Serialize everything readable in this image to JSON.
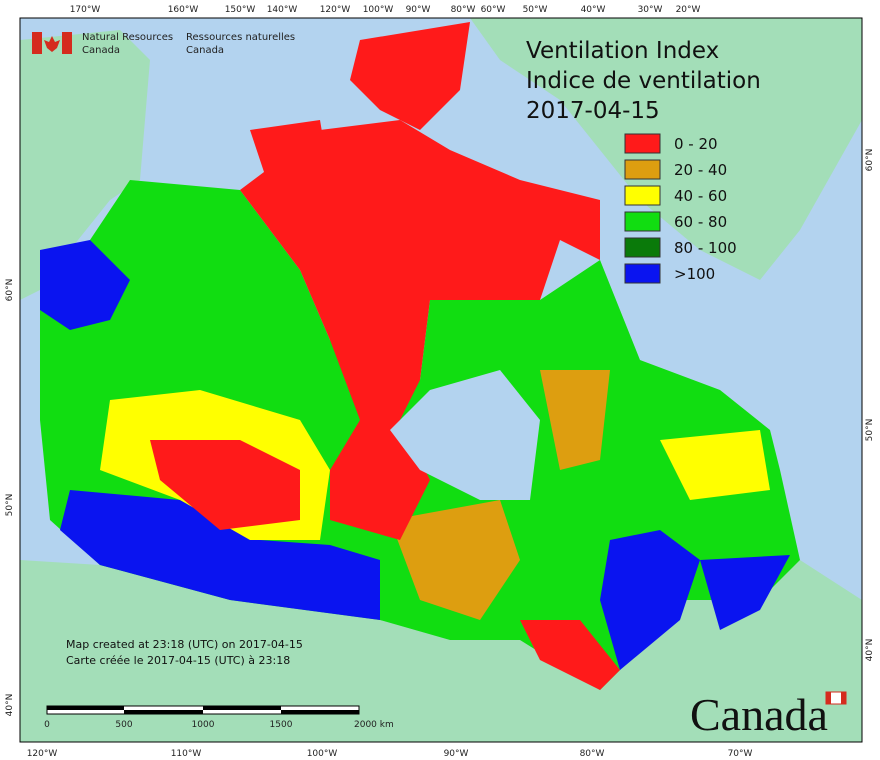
{
  "header": {
    "agency_en": [
      "Natural Resources",
      "Canada"
    ],
    "agency_fr": [
      "Ressources naturelles",
      "Canada"
    ]
  },
  "title": [
    "Ventilation Index",
    "Indice de ventilation",
    "2017-04-15"
  ],
  "legend": [
    {
      "label": "0 - 20",
      "color": "#ff1a1a"
    },
    {
      "label": "20 - 40",
      "color": "#dd9e10"
    },
    {
      "label": "40 - 60",
      "color": "#ffff00"
    },
    {
      "label": "60 - 80",
      "color": "#11dd11"
    },
    {
      "label": "80 - 100",
      "color": "#0a7a0a"
    },
    {
      "label": ">100",
      "color": "#0a14f0"
    }
  ],
  "graticule": {
    "top": [
      "170°W",
      "160°W",
      "150°W",
      "140°W",
      "120°W",
      "100°W",
      "90°W",
      "80°W",
      "60°W",
      "50°W",
      "40°W",
      "30°W",
      "20°W"
    ],
    "bottom": [
      "120°W",
      "110°W",
      "100°W",
      "90°W",
      "80°W",
      "70°W"
    ],
    "left": [
      "60°N",
      "50°N",
      "40°N"
    ],
    "right": [
      "60°N",
      "50°N",
      "40°N"
    ]
  },
  "notes": [
    "Map created at 23:18 (UTC) on 2017-04-15",
    "Carte créée le 2017-04-15 (UTC) à 23:18"
  ],
  "scale_bar": [
    "0",
    "500",
    "1000",
    "1500",
    "2000 km"
  ],
  "wordmark": "Canada"
}
